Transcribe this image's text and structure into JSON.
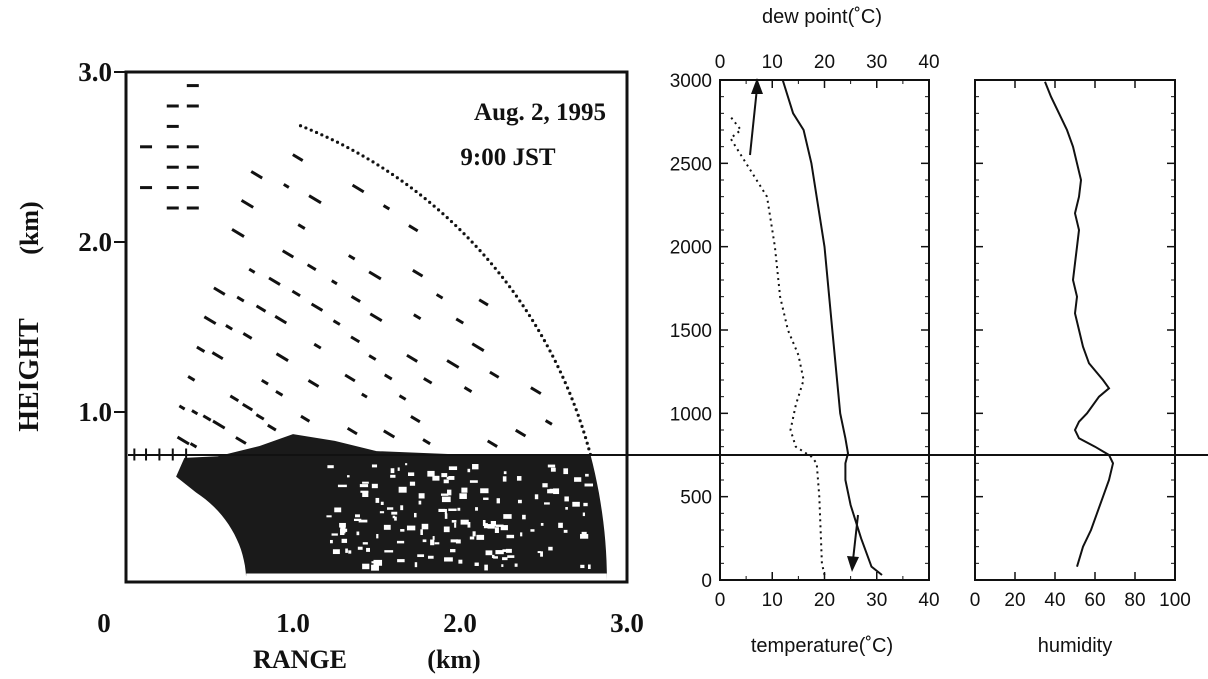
{
  "chart_data": [
    {
      "type": "scatter",
      "panel": "radar-rhi",
      "annotation_date": "Aug. 2, 1995",
      "annotation_time": "9:00 JST",
      "xlabel": "RANGE",
      "xunit": "(km)",
      "ylabel": "HEIGHT",
      "yunit": "(km)",
      "xlim": [
        0,
        3.0
      ],
      "ylim": [
        0,
        3.0
      ],
      "x_ticks": [
        "0",
        "1.0",
        "2.0",
        "3.0"
      ],
      "y_ticks": [
        "1.0",
        "2.0",
        "3.0"
      ],
      "reference_height_km": 0.75,
      "echo_outer_range_km": 2.88,
      "echo_solid_top_km": 0.75,
      "grid": false
    },
    {
      "type": "line",
      "panel": "temperature-dewpoint",
      "xlabel": "temperature(˚C)",
      "x2label": "dew point(˚C)",
      "xlim": [
        0,
        40
      ],
      "ylim": [
        0,
        3000
      ],
      "x_ticks": [
        "0",
        "10",
        "20",
        "30",
        "40"
      ],
      "x2_ticks": [
        "0",
        "10",
        "20",
        "30",
        "40"
      ],
      "y_ticks": [
        "0",
        "500",
        "1000",
        "1500",
        "2000",
        "2500",
        "3000"
      ],
      "grid": false,
      "series": [
        {
          "line": "solid",
          "points": [
            [
              31,
              30
            ],
            [
              29,
              80
            ],
            [
              27,
              250
            ],
            [
              25,
              450
            ],
            [
              24,
              600
            ],
            [
              24,
              700
            ],
            [
              24.5,
              760
            ],
            [
              24,
              850
            ],
            [
              23,
              1000
            ],
            [
              21.5,
              1500
            ],
            [
              20,
              2000
            ],
            [
              17.5,
              2500
            ],
            [
              16,
              2700
            ],
            [
              14,
              2800
            ],
            [
              12,
              3000
            ]
          ]
        },
        {
          "line": "dotted",
          "points": [
            [
              20,
              30
            ],
            [
              19.5,
              100
            ],
            [
              19,
              500
            ],
            [
              18.5,
              700
            ],
            [
              17.5,
              740
            ],
            [
              14.5,
              800
            ],
            [
              13.5,
              900
            ],
            [
              14.5,
              1050
            ],
            [
              16,
              1200
            ],
            [
              15,
              1350
            ],
            [
              13,
              1500
            ],
            [
              11.5,
              1700
            ],
            [
              10.5,
              2000
            ],
            [
              9,
              2300
            ],
            [
              6,
              2450
            ],
            [
              5,
              2500
            ],
            [
              4,
              2550
            ],
            [
              2,
              2650
            ],
            [
              4,
              2700
            ],
            [
              2,
              2780
            ]
          ]
        }
      ]
    },
    {
      "type": "line",
      "panel": "humidity",
      "xlabel": "humidity",
      "xlim": [
        0,
        100
      ],
      "ylim": [
        0,
        3000
      ],
      "x_ticks": [
        "0",
        "20",
        "40",
        "60",
        "80",
        "100"
      ],
      "grid": false,
      "series": [
        {
          "line": "solid",
          "points": [
            [
              51,
              80
            ],
            [
              54,
              200
            ],
            [
              58,
              300
            ],
            [
              61,
              400
            ],
            [
              64,
              500
            ],
            [
              67,
              600
            ],
            [
              69,
              700
            ],
            [
              67,
              750
            ],
            [
              60,
              800
            ],
            [
              52,
              850
            ],
            [
              50,
              900
            ],
            [
              52,
              950
            ],
            [
              56,
              1000
            ],
            [
              62,
              1100
            ],
            [
              67,
              1150
            ],
            [
              64,
              1200
            ],
            [
              57,
              1300
            ],
            [
              54,
              1400
            ],
            [
              52,
              1500
            ],
            [
              50,
              1600
            ],
            [
              51,
              1700
            ],
            [
              49,
              1800
            ],
            [
              50,
              1900
            ],
            [
              51,
              2000
            ],
            [
              52,
              2100
            ],
            [
              50,
              2200
            ],
            [
              52,
              2300
            ],
            [
              53,
              2400
            ],
            [
              51,
              2500
            ],
            [
              49,
              2600
            ],
            [
              46,
              2700
            ],
            [
              42,
              2800
            ],
            [
              38,
              2900
            ],
            [
              35,
              2990
            ]
          ]
        }
      ]
    }
  ]
}
